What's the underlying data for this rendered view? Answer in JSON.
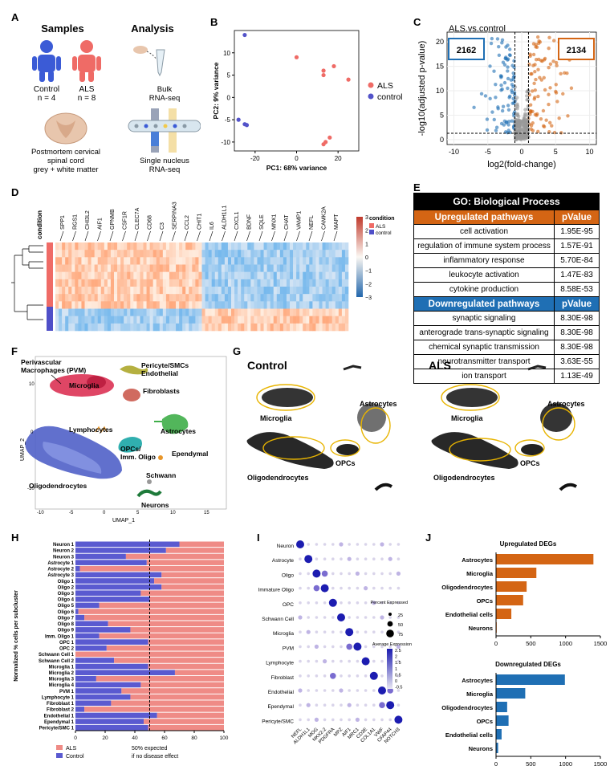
{
  "panels": {
    "A": "A",
    "B": "B",
    "C": "C",
    "D": "D",
    "E": "E",
    "F": "F",
    "G": "G",
    "H": "H",
    "I": "I",
    "J": "J"
  },
  "panelA": {
    "samples_title": "Samples",
    "analysis_title": "Analysis",
    "control_label": "Control",
    "control_n": "n = 4",
    "als_label": "ALS",
    "als_n": "n = 8",
    "tissue_line1": "Postmortem cervical",
    "tissue_line2": "spinal cord",
    "tissue_line3": "grey + white matter",
    "bulk_line1": "Bulk",
    "bulk_line2": "RNA-seq",
    "sn_line1": "Single nucleus",
    "sn_line2": "RNA-seq",
    "colors": {
      "control": "#3b5bd6",
      "als": "#ef6b66",
      "tissue": "#e8c6ad"
    }
  },
  "chart_data": [
    {
      "id": "B",
      "type": "scatter",
      "xlabel": "PC1: 68% variance",
      "ylabel": "PC2: 9% variance",
      "xlim": [
        -30,
        30
      ],
      "ylim": [
        -12,
        15
      ],
      "xticks": [
        -20,
        0,
        20
      ],
      "yticks": [
        -10,
        -5,
        0,
        5,
        10
      ],
      "series": [
        {
          "name": "ALS",
          "color": "#ef6b66",
          "points": [
            [
              0,
              9
            ],
            [
              13,
              6
            ],
            [
              13,
              5
            ],
            [
              18,
              7
            ],
            [
              25,
              4
            ],
            [
              16,
              -9
            ],
            [
              14,
              -10
            ],
            [
              13,
              -10.5
            ]
          ]
        },
        {
          "name": "control",
          "color": "#5353c9",
          "points": [
            [
              -25,
              14
            ],
            [
              -28,
              -5
            ],
            [
              -25,
              -6
            ],
            [
              -24,
              -6.2
            ]
          ]
        }
      ]
    },
    {
      "id": "C",
      "type": "scatter",
      "title": "ALS.vs.control",
      "xlabel": "log2(fold-change)",
      "ylabel": "-log10(adjusted p-value)",
      "xlim": [
        -11,
        11
      ],
      "ylim": [
        -1,
        22
      ],
      "xticks": [
        -10,
        -5,
        0,
        5,
        10
      ],
      "yticks": [
        0,
        5,
        10,
        15,
        20
      ],
      "down_count": "2162",
      "up_count": "2134",
      "colors": {
        "down": "#1f6fb4",
        "up": "#d46514",
        "ns": "#9a9a9a"
      }
    },
    {
      "id": "H",
      "type": "bar",
      "ylabel": "Normalized % cells per subcluster",
      "xticks": [
        0,
        20,
        40,
        60,
        80,
        100
      ],
      "categories": [
        "Neuron 1",
        "Neuron 2",
        "Neuron 3",
        "Astrocyte 1",
        "Astrocyte 2",
        "Astrocyte 3",
        "Oligo 1",
        "Oligo 2",
        "Oligo 3",
        "Oligo 4",
        "Oligo 5",
        "Oligo 6",
        "Oligo 7",
        "Oligo 8",
        "Oligo 9",
        "Imm. Oligo 1",
        "OPC 1",
        "OPC 2",
        "Schwann Cell 1",
        "Schwann Cell 2",
        "Microglia 1",
        "Microglia 2",
        "Microglia 3",
        "Microglia 4",
        "PVM 1",
        "Lymphocyte 1",
        "Fibroblast 1",
        "Fibroblast 2",
        "Endothelial 1",
        "Ependymal 1",
        "Pericyte/SMC 1"
      ],
      "series": [
        {
          "name": "Control",
          "color": "#5a5ad0",
          "values": [
            70,
            61,
            34,
            48,
            3,
            58,
            53,
            58,
            44,
            50,
            16,
            2,
            6,
            22,
            37,
            16,
            49,
            21,
            0,
            26,
            49,
            67,
            14,
            44,
            31,
            37,
            24,
            6,
            55,
            46,
            49
          ]
        },
        {
          "name": "ALS",
          "color": "#ef8b86"
        }
      ],
      "ref_line": 50,
      "ref_note_line1": "50% expected",
      "ref_note_line2": "if no disease effect"
    },
    {
      "id": "I",
      "type": "scatter",
      "rows": [
        "Neuron",
        "Astrocyte",
        "Oligo",
        "Immature Oligo",
        "OPC",
        "Schwann Cell",
        "Microglia",
        "PVM",
        "Lymphocyte",
        "Fibroblast",
        "Endothelial",
        "Ependymal",
        "Pericyte/SMC"
      ],
      "genes": [
        "NEFL",
        "ALDH1L1",
        "MOG",
        "NKX2-2",
        "PDGFRA",
        "MPZ",
        "AIF1",
        "MRC1",
        "CD3E",
        "COL1A1",
        "VWF",
        "CFAP44",
        "NOTCH3"
      ],
      "legend_size_title": "Percent Expressed",
      "size_ticks": [
        25,
        50,
        75
      ],
      "legend_color_title": "Average Expression",
      "color_ticks": [
        2.5,
        2.0,
        1.5,
        1.0,
        0.5,
        0.0,
        -0.5
      ]
    },
    {
      "id": "J-up",
      "type": "bar",
      "title": "Upregulated  DEGs",
      "color": "#d46514",
      "categories": [
        "Astrocytes",
        "Microglia",
        "Oligodendrocytes",
        "OPCs",
        "Endothelial cells",
        "Neurons"
      ],
      "values": [
        1400,
        580,
        440,
        390,
        220,
        10
      ],
      "xticks": [
        0,
        500,
        1000,
        1500
      ]
    },
    {
      "id": "J-down",
      "type": "bar",
      "title": "Downregulated  DEGs",
      "color": "#1f6fb4",
      "categories": [
        "Astrocytes",
        "Microglia",
        "Oligodendrocytes",
        "OPCs",
        "Endothelial cells",
        "Neurons"
      ],
      "values": [
        990,
        420,
        160,
        180,
        80,
        30
      ],
      "xticks": [
        0,
        500,
        1000,
        1500
      ]
    }
  ],
  "panelD": {
    "condition_label": "condition",
    "genes": [
      "SPP1",
      "RGS1",
      "CHI3L2",
      "AIF1",
      "GPNMB",
      "CSF1R",
      "CLEC7A",
      "CD68",
      "C3",
      "SERPINA3",
      "CCL2",
      "CHIT1",
      "IL6",
      "ALDH1L1",
      "CXCL1",
      "BDNF",
      "SQLE",
      "MNX1",
      "CHAT",
      "VAMP1",
      "NEFL",
      "CAMK2A",
      "MAPT"
    ],
    "legend_title": "condition",
    "legend_als": "ALS",
    "legend_control": "control",
    "scale_ticks": [
      "3",
      "2",
      "1",
      "0",
      "−1",
      "−2",
      "−3"
    ]
  },
  "panelE": {
    "header": "GO: Biological Process",
    "up_title": "Upregulated pathways",
    "down_title": "Downregulated pathways",
    "pval_title": "pValue",
    "up_rows": [
      [
        "cell activation",
        "1.95E-95"
      ],
      [
        "regulation of immune system process",
        "1.57E-91"
      ],
      [
        "inflammatory response",
        "5.70E-84"
      ],
      [
        "leukocyte activation",
        "1.47E-83"
      ],
      [
        "cytokine production",
        "8.58E-53"
      ]
    ],
    "down_rows": [
      [
        "synaptic signaling",
        "8.30E-98"
      ],
      [
        "anterograde trans-synaptic signaling",
        "8.30E-98"
      ],
      [
        "chemical synaptic transmission",
        "8.30E-98"
      ],
      [
        "neurotransmitter transport",
        "3.63E-55"
      ],
      [
        "ion transport",
        "1.13E-49"
      ]
    ]
  },
  "panelF": {
    "xlabel": "UMAP_1",
    "ylabel": "UMAP_2",
    "xticks": [
      "-10",
      "-5",
      "0",
      "5",
      "10",
      "15"
    ],
    "yticks": [
      "10",
      "0",
      "-10"
    ],
    "labels": {
      "pvm1": "Perivascular",
      "pvm2": "Macrophages (PVM)",
      "microglia": "Microglia",
      "pericyte1": "Pericyte/SMCs",
      "pericyte2": "Endothelial",
      "fibro": "Fibroblasts",
      "lympho": "Lymphocytes",
      "astro": "Astrocytes",
      "opc1": "OPCs/",
      "opc2": "Imm. Oligo",
      "epend": "Ependymal",
      "schwann": "Schwann",
      "oligo": "Oligodendrocytes",
      "neurons": "Neurons"
    }
  },
  "panelG": {
    "control_title": "Control",
    "als_title": "ALS",
    "labels": {
      "microglia": "Microglia",
      "astro": "Astrocytes",
      "opcs": "OPCs",
      "oligo": "Oligodendrocytes"
    }
  },
  "panelH_legend": {
    "als": "ALS",
    "control": "Control"
  }
}
